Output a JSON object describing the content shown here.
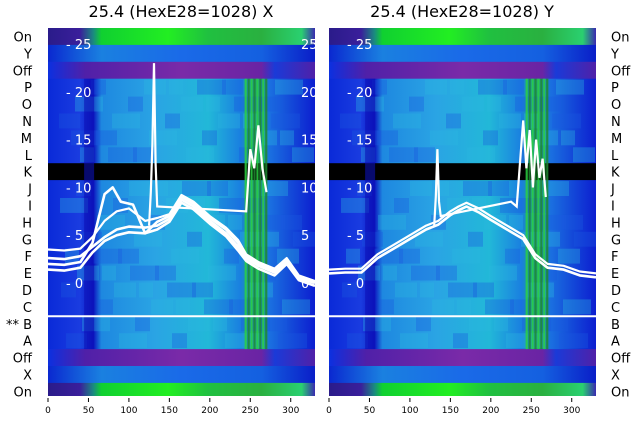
{
  "chart_data": [
    {
      "type": "heatmap",
      "title": "25.4 (HexE28=1028) X",
      "xlim": [
        0,
        330
      ],
      "x_ticks": [
        0,
        50,
        100,
        150,
        200,
        250,
        300
      ],
      "y_tick_labels": [
        25,
        20,
        15,
        10,
        5,
        0
      ],
      "y_tick_range": [
        -5,
        28
      ],
      "row_labels_left": [
        "On",
        "Y",
        "Off",
        "P",
        "O",
        "N",
        "M",
        "L",
        "K",
        "J",
        "I",
        "H",
        "G",
        "F",
        "E",
        "D",
        "C",
        "** B",
        "A",
        "Off",
        "X",
        "On"
      ],
      "highlighted_row": "B",
      "blank_rows": [
        "K"
      ],
      "series": [
        {
          "values": [
            [
              0,
              3.5
            ],
            [
              20,
              3.4
            ],
            [
              40,
              3.6
            ],
            [
              55,
              4.8
            ],
            [
              70,
              6.5
            ],
            [
              85,
              7.5
            ],
            [
              100,
              7.8
            ],
            [
              120,
              6.5
            ],
            [
              135,
              6.8
            ],
            [
              150,
              7.2
            ],
            [
              165,
              9.2
            ],
            [
              180,
              8.5
            ],
            [
              200,
              7.0
            ],
            [
              220,
              5.8
            ],
            [
              235,
              4.5
            ],
            [
              245,
              3.0
            ],
            [
              260,
              2.2
            ],
            [
              280,
              1.5
            ],
            [
              295,
              2.6
            ],
            [
              310,
              0.8
            ],
            [
              330,
              0.2
            ]
          ]
        },
        {
          "values": [
            [
              0,
              2.6
            ],
            [
              20,
              2.5
            ],
            [
              40,
              2.8
            ],
            [
              55,
              3.8
            ],
            [
              70,
              4.8
            ],
            [
              85,
              5.6
            ],
            [
              100,
              5.9
            ],
            [
              120,
              5.8
            ],
            [
              135,
              6.0
            ],
            [
              150,
              6.7
            ],
            [
              165,
              8.7
            ],
            [
              180,
              8.0
            ],
            [
              200,
              6.5
            ],
            [
              220,
              5.2
            ],
            [
              235,
              3.8
            ],
            [
              245,
              2.6
            ],
            [
              260,
              1.8
            ],
            [
              280,
              1.1
            ],
            [
              295,
              2.3
            ],
            [
              310,
              0.5
            ],
            [
              330,
              0.0
            ]
          ]
        },
        {
          "values": [
            [
              0,
              2.0
            ],
            [
              20,
              1.9
            ],
            [
              40,
              2.2
            ],
            [
              55,
              4.2
            ],
            [
              70,
              9.3
            ],
            [
              80,
              10.0
            ],
            [
              90,
              8.5
            ],
            [
              105,
              8.2
            ],
            [
              120,
              5.2
            ],
            [
              135,
              6.4
            ],
            [
              150,
              7.0
            ],
            [
              165,
              9.0
            ],
            [
              180,
              8.3
            ],
            [
              200,
              6.8
            ],
            [
              220,
              5.6
            ],
            [
              235,
              4.2
            ],
            [
              245,
              2.8
            ],
            [
              260,
              2.0
            ],
            [
              280,
              1.3
            ],
            [
              295,
              2.4
            ],
            [
              310,
              0.6
            ],
            [
              330,
              0.1
            ]
          ]
        },
        {
          "values": [
            [
              0,
              1.4
            ],
            [
              20,
              1.3
            ],
            [
              40,
              1.6
            ],
            [
              55,
              3.2
            ],
            [
              70,
              4.4
            ],
            [
              85,
              5.0
            ],
            [
              100,
              5.3
            ],
            [
              120,
              5.2
            ],
            [
              135,
              5.6
            ],
            [
              150,
              6.4
            ],
            [
              165,
              8.4
            ],
            [
              180,
              7.7
            ],
            [
              200,
              6.2
            ],
            [
              220,
              4.9
            ],
            [
              235,
              3.4
            ],
            [
              245,
              2.3
            ],
            [
              260,
              1.5
            ],
            [
              280,
              0.8
            ],
            [
              295,
              2.0
            ],
            [
              310,
              0.3
            ],
            [
              330,
              -0.3
            ]
          ]
        }
      ],
      "spike_series": {
        "values": [
          [
            125,
            6.0
          ],
          [
            127,
            9.5
          ],
          [
            129,
            14.5
          ],
          [
            131,
            23.0
          ],
          [
            133,
            12.5
          ],
          [
            135,
            8.0
          ],
          [
            245,
            7.5
          ],
          [
            250,
            14.0
          ],
          [
            255,
            12.0
          ],
          [
            260,
            16.5
          ],
          [
            265,
            12.0
          ],
          [
            270,
            9.5
          ]
        ]
      },
      "stripe_x_ranges": [
        [
          57,
          96
        ],
        [
          243,
          272
        ]
      ]
    },
    {
      "type": "heatmap",
      "title": "25.4 (HexE28=1028) Y",
      "xlim": [
        0,
        330
      ],
      "x_ticks": [
        0,
        50,
        100,
        150,
        200,
        250,
        300
      ],
      "y_tick_labels": [
        25,
        20,
        15,
        10,
        5,
        0
      ],
      "y_tick_range": [
        -5,
        28
      ],
      "row_labels_right": [
        "On",
        "Y",
        "Off",
        "P",
        "O",
        "N",
        "M",
        "L",
        "K",
        "J",
        "I",
        "H",
        "G",
        "F",
        "E",
        "D",
        "C",
        "B",
        "A",
        "Off",
        "X",
        "On"
      ],
      "highlighted_row": "B",
      "blank_rows": [
        "K"
      ],
      "series": [
        {
          "values": [
            [
              0,
              1.4
            ],
            [
              20,
              1.5
            ],
            [
              40,
              1.5
            ],
            [
              60,
              3.0
            ],
            [
              80,
              4.0
            ],
            [
              100,
              5.0
            ],
            [
              120,
              6.0
            ],
            [
              135,
              6.5
            ],
            [
              150,
              7.5
            ],
            [
              160,
              8.0
            ],
            [
              170,
              8.4
            ],
            [
              185,
              7.8
            ],
            [
              200,
              7.0
            ],
            [
              220,
              6.0
            ],
            [
              240,
              5.0
            ],
            [
              255,
              3.0
            ],
            [
              270,
              2.0
            ],
            [
              290,
              1.8
            ],
            [
              310,
              1.2
            ],
            [
              330,
              1.0
            ]
          ]
        },
        {
          "values": [
            [
              0,
              1.0
            ],
            [
              20,
              1.1
            ],
            [
              40,
              1.1
            ],
            [
              60,
              2.6
            ],
            [
              80,
              3.6
            ],
            [
              100,
              4.6
            ],
            [
              120,
              5.6
            ],
            [
              135,
              6.1
            ],
            [
              150,
              7.1
            ],
            [
              160,
              7.6
            ],
            [
              170,
              8.0
            ],
            [
              185,
              7.4
            ],
            [
              200,
              6.6
            ],
            [
              220,
              5.6
            ],
            [
              240,
              4.6
            ],
            [
              255,
              2.6
            ],
            [
              270,
              1.6
            ],
            [
              290,
              1.4
            ],
            [
              310,
              0.8
            ],
            [
              330,
              0.6
            ]
          ]
        }
      ],
      "spike_series": {
        "values": [
          [
            130,
            6.0
          ],
          [
            132,
            9.0
          ],
          [
            134,
            14.0
          ],
          [
            136,
            8.5
          ],
          [
            138,
            7.0
          ],
          [
            225,
            8.5
          ],
          [
            232,
            8.0
          ],
          [
            240,
            17.0
          ],
          [
            244,
            12.0
          ],
          [
            248,
            16.0
          ],
          [
            252,
            10.0
          ],
          [
            256,
            15.0
          ],
          [
            260,
            11.0
          ],
          [
            264,
            13.0
          ],
          [
            268,
            9.0
          ]
        ]
      },
      "stripe_x_ranges": [
        [
          57,
          96
        ],
        [
          243,
          272
        ]
      ]
    }
  ]
}
